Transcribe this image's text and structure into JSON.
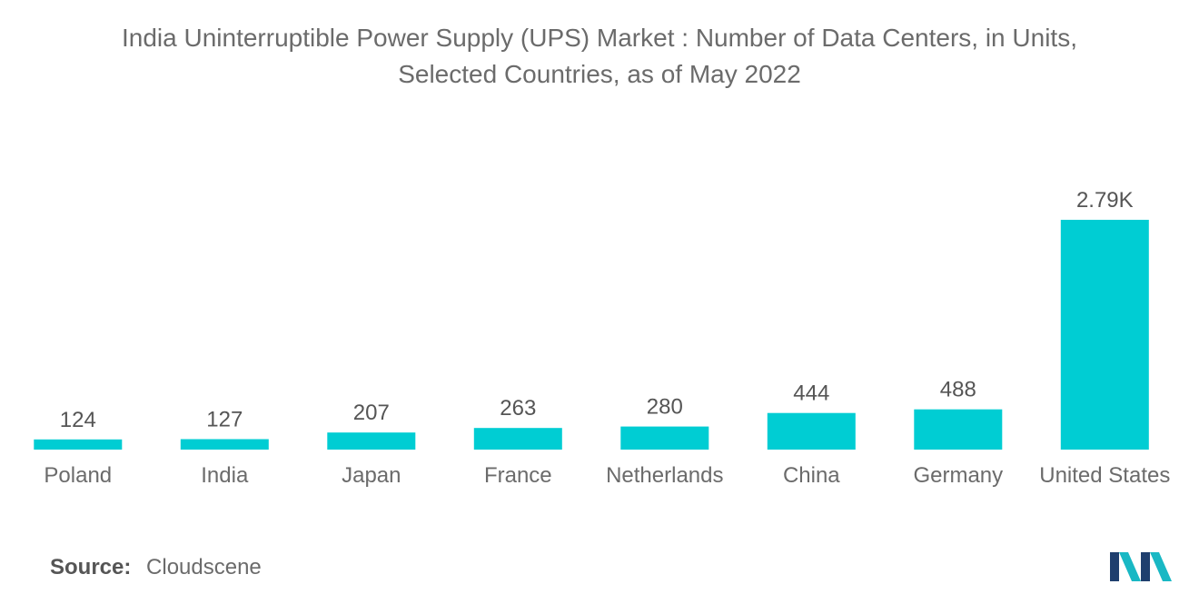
{
  "title_line1": "India Uninterruptible Power Supply (UPS) Market : Number of Data Centers, in Units,",
  "title_line2": "Selected Countries, as of May 2022",
  "source_label": "Source:",
  "source_value": "Cloudscene",
  "colors": {
    "bar": "#00cdd3",
    "text": "#6b6b6b",
    "logo_dark": "#1f3f6e",
    "logo_light": "#19b8c4"
  },
  "chart_data": {
    "type": "bar",
    "title": "India Uninterruptible Power Supply (UPS) Market : Number of Data Centers, in Units, Selected Countries, as of May 2022",
    "categories": [
      "Poland",
      "India",
      "Japan",
      "France",
      "Netherlands",
      "China",
      "Germany",
      "United States"
    ],
    "values": [
      124,
      127,
      207,
      263,
      280,
      444,
      488,
      2790
    ],
    "value_labels": [
      "124",
      "127",
      "207",
      "263",
      "280",
      "444",
      "488",
      "2.79K"
    ],
    "xlabel": "",
    "ylabel": "",
    "ylim": [
      0,
      2790
    ],
    "grid": false,
    "legend": "none"
  }
}
